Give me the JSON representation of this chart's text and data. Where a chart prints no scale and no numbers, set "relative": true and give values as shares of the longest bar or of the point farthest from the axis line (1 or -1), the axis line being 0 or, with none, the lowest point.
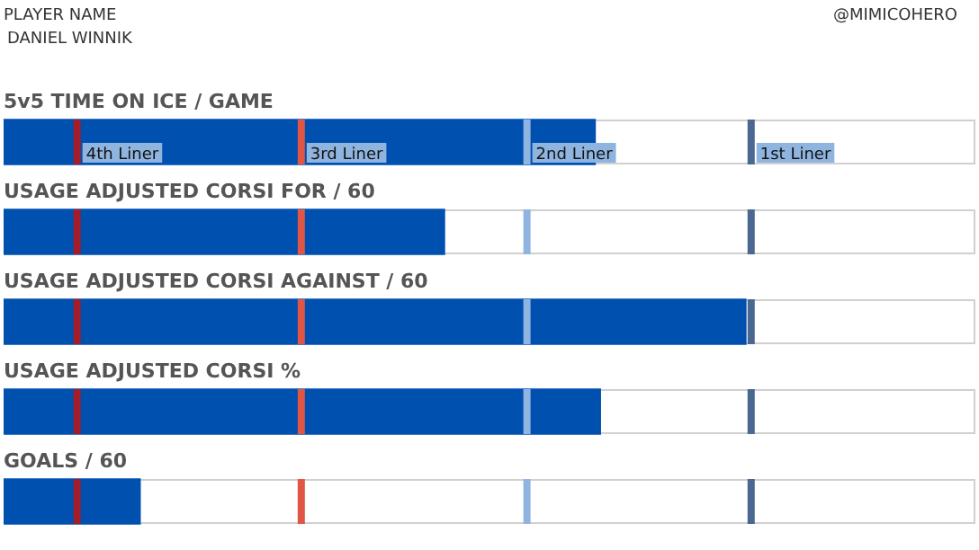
{
  "chart_data": {
    "type": "bar",
    "orientation": "horizontal",
    "relative": true,
    "title": "PLAYER NAME",
    "subtitle": "DANIEL WINNIK",
    "annotations": [
      "@MIMICOHERO"
    ],
    "categories": [
      "5v5 TIME ON ICE / GAME",
      "USAGE ADJUSTED CORSI FOR / 60",
      "USAGE ADJUSTED CORSI AGAINST / 60",
      "USAGE ADJUSTED CORSI %",
      "GOALS / 60"
    ],
    "values": [
      0.797,
      0.594,
      1,
      0.804,
      0.184
    ],
    "color": "#0050b0",
    "ref_lines": [
      {
        "axis": "x",
        "value": 0.099,
        "label": "4th Liner",
        "color": "#a31d2a"
      },
      {
        "axis": "x",
        "value": 0.401,
        "label": "3rd Liner",
        "color": "#e05545"
      },
      {
        "axis": "x",
        "value": 0.705,
        "label": "2nd Liner",
        "color": "#8fb4e0"
      },
      {
        "axis": "x",
        "value": 1.007,
        "label": "1st Liner",
        "color": "#4a6890"
      }
    ],
    "legend": false
  }
}
